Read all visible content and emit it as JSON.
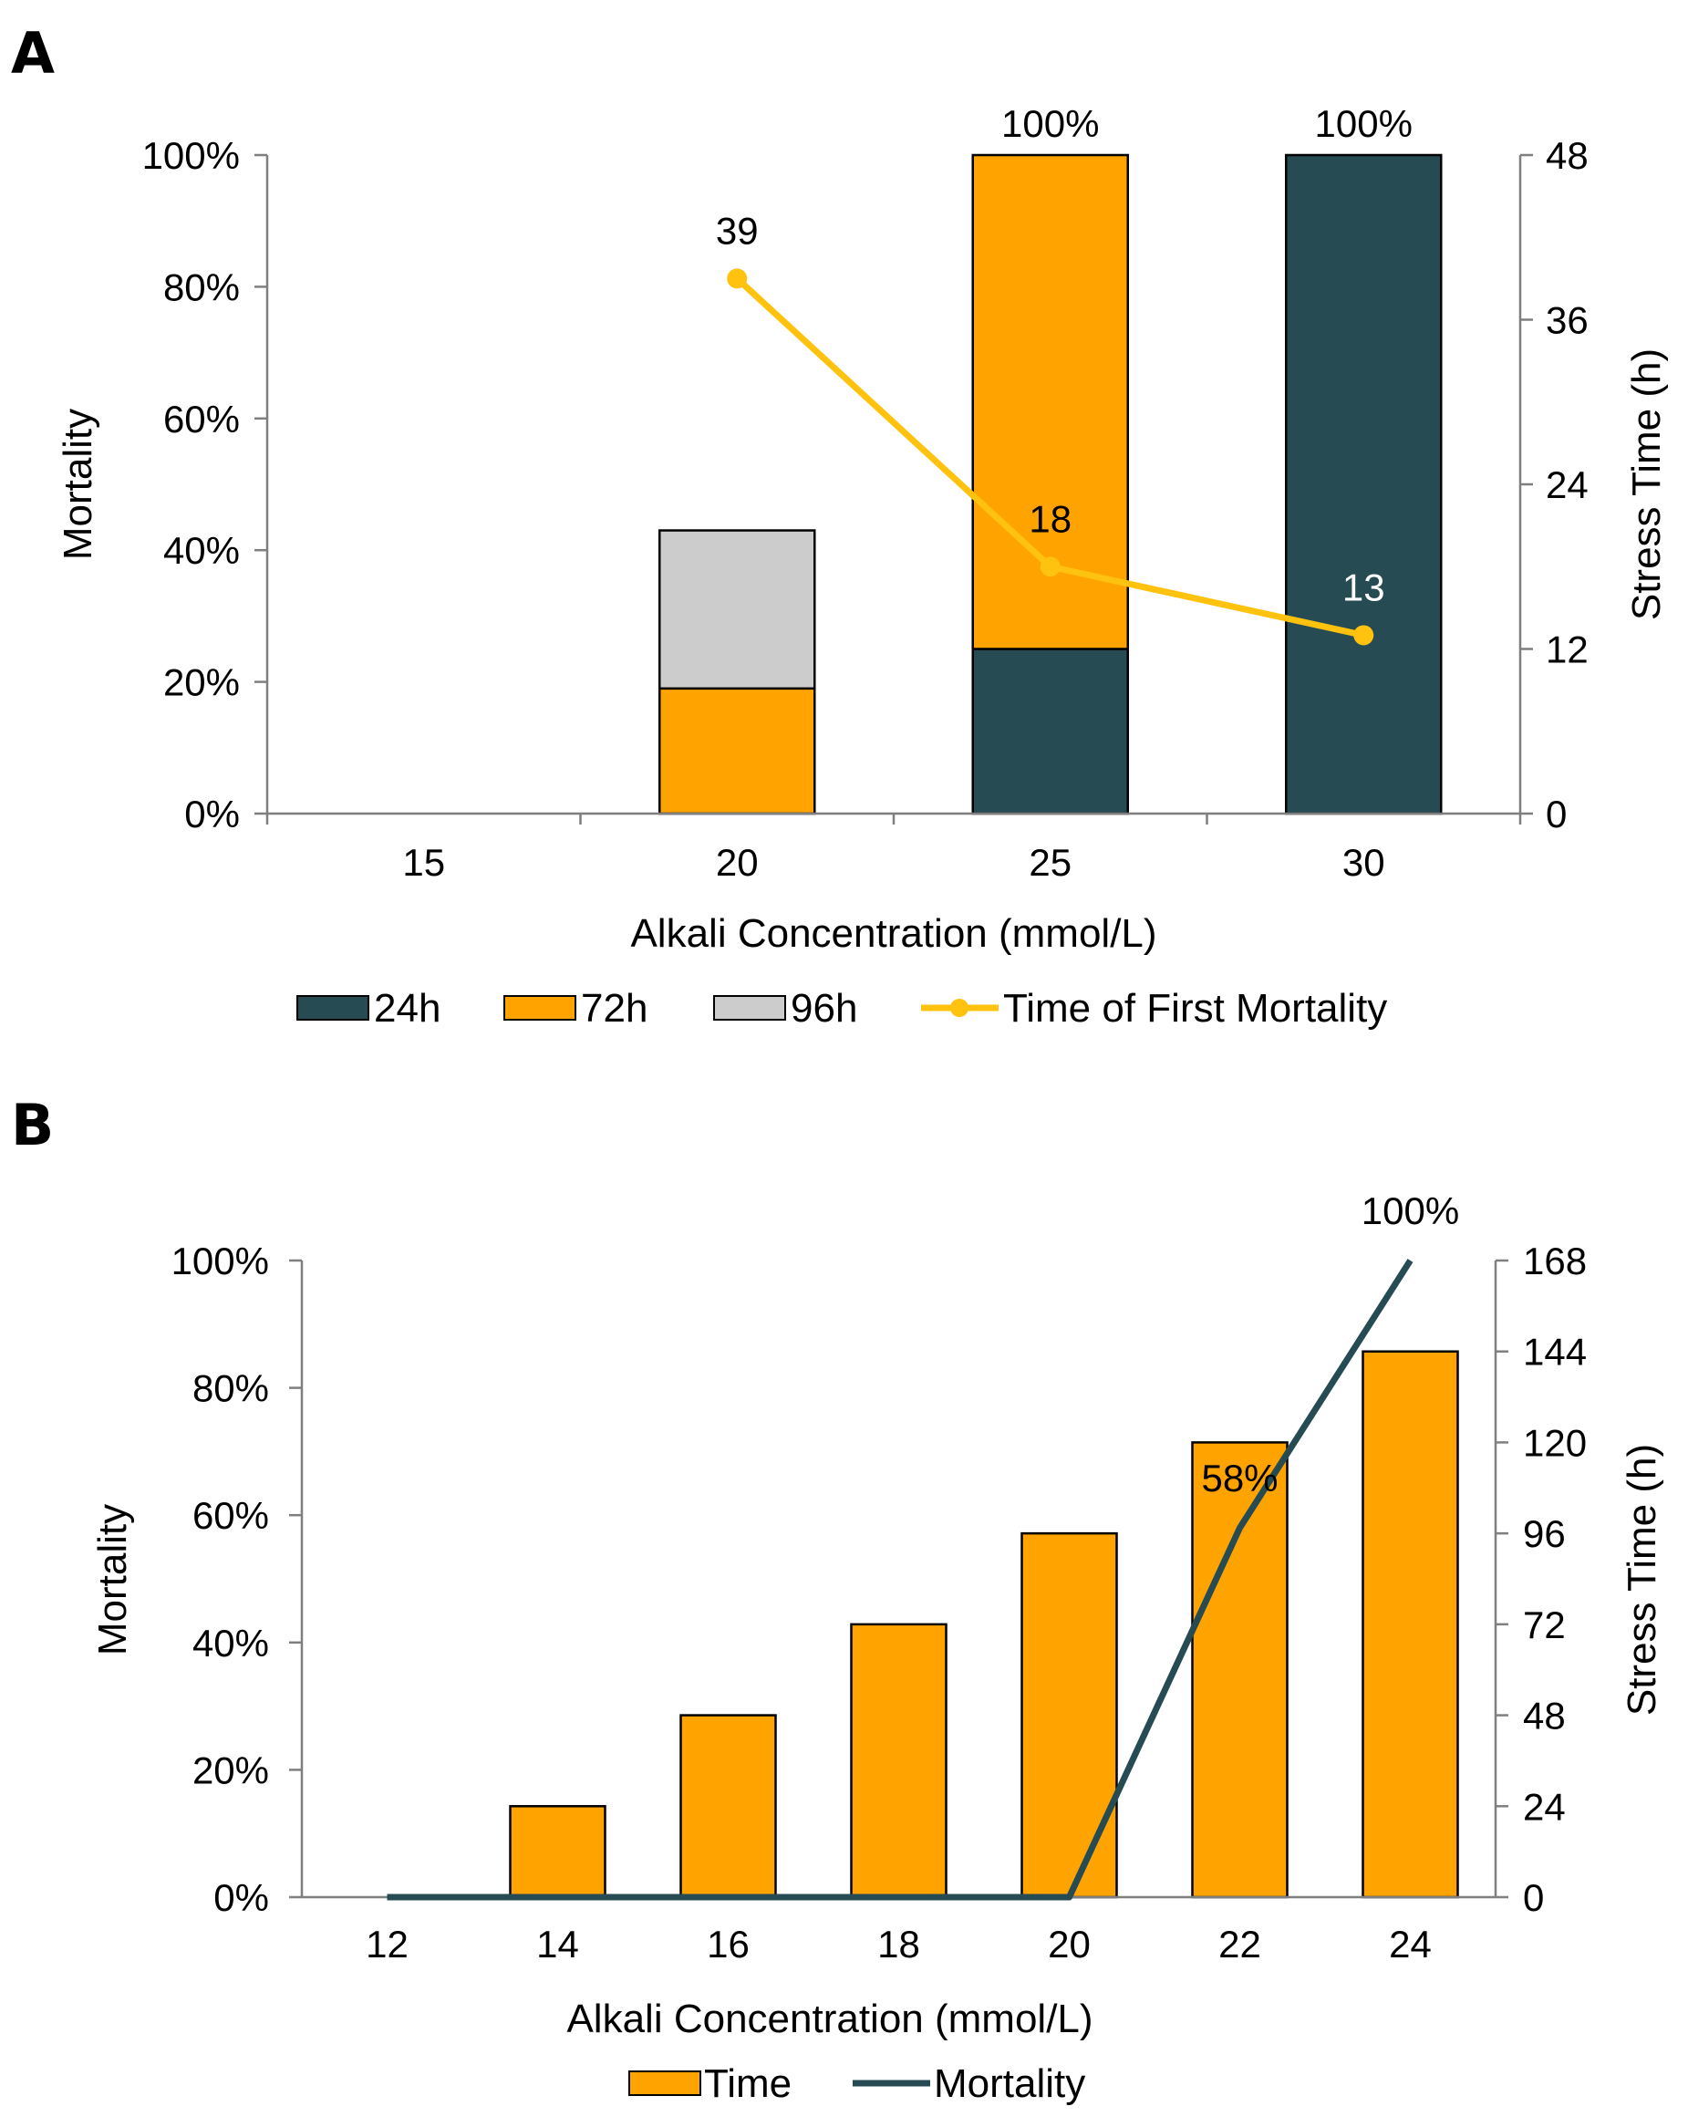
{
  "colors": {
    "dark_teal": "#264b53",
    "orange": "#ffa300",
    "gray": "#cccccc",
    "gold": "#ffc20e",
    "axis": "#7f7f7f"
  },
  "chart_data": [
    {
      "panel": "A",
      "type": "bar",
      "stacked": true,
      "xlabel": "Alkali Concentration (mmol/L)",
      "ylabel": "Mortality",
      "y2label": "Stress Time (h)",
      "categories": [
        "15",
        "20",
        "25",
        "30"
      ],
      "ylim": [
        0,
        100
      ],
      "y_ticks": [
        "0%",
        "20%",
        "40%",
        "60%",
        "80%",
        "100%"
      ],
      "y_tick_values": [
        0,
        20,
        40,
        60,
        80,
        100
      ],
      "y2lim": [
        0,
        48
      ],
      "y2_ticks": [
        "0",
        "12",
        "24",
        "36",
        "48"
      ],
      "y2_tick_values": [
        0,
        12,
        24,
        36,
        48
      ],
      "series": [
        {
          "name": "24h",
          "color": "#264b53",
          "values": [
            0,
            0,
            25,
            100
          ]
        },
        {
          "name": "72h",
          "color": "#ffa300",
          "values": [
            0,
            19,
            75,
            0
          ]
        },
        {
          "name": "96h",
          "color": "#cccccc",
          "values": [
            0,
            24,
            0,
            0
          ]
        }
      ],
      "line": {
        "name": "Time of First Mortality",
        "axis": "secondary",
        "color": "#ffc20e",
        "values": [
          null,
          39,
          18,
          13
        ],
        "labels": [
          "",
          "39",
          "18",
          "13"
        ]
      },
      "total_labels": [
        "",
        "",
        "100%",
        "100%"
      ],
      "legend": [
        "24h",
        "72h",
        "96h",
        "Time of First Mortality"
      ]
    },
    {
      "panel": "B",
      "type": "bar",
      "xlabel": "Alkali Concentration (mmol/L)",
      "ylabel": "Mortality",
      "y2label": "Stress Time (h)",
      "categories": [
        "12",
        "14",
        "16",
        "18",
        "20",
        "22",
        "24"
      ],
      "ylim": [
        0,
        100
      ],
      "y_ticks": [
        "0%",
        "20%",
        "40%",
        "60%",
        "80%",
        "100%"
      ],
      "y_tick_values": [
        0,
        20,
        40,
        60,
        80,
        100
      ],
      "y2lim": [
        0,
        168
      ],
      "y2_ticks": [
        "0",
        "24",
        "48",
        "72",
        "96",
        "120",
        "144",
        "168"
      ],
      "y2_tick_values": [
        0,
        24,
        48,
        72,
        96,
        120,
        144,
        168
      ],
      "series": [
        {
          "name": "Time",
          "axis": "secondary",
          "color": "#ffa300",
          "values": [
            0,
            24,
            48,
            72,
            96,
            120,
            144
          ]
        }
      ],
      "line": {
        "name": "Mortality",
        "axis": "primary",
        "color": "#264b53",
        "values": [
          0,
          0,
          0,
          0,
          0,
          58,
          100
        ],
        "labels": [
          "",
          "",
          "",
          "",
          "",
          "58%",
          "100%"
        ]
      },
      "legend": [
        "Time",
        "Mortality"
      ]
    }
  ]
}
